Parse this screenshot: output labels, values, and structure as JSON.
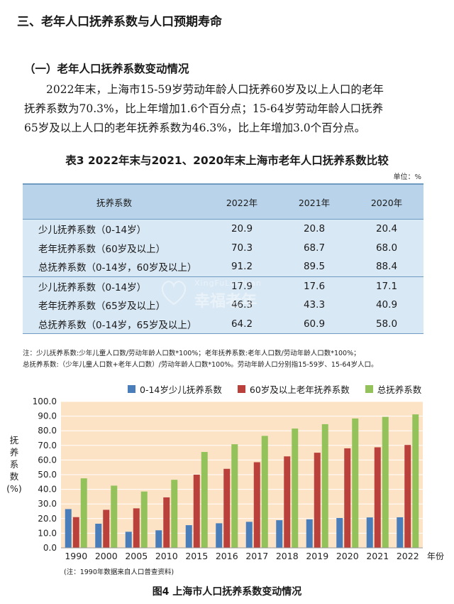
{
  "section_title": "三、老年人口抚养系数与人口预期寿命",
  "subsection_title": "（一）老年人口抚养系数变动情况",
  "paragraph": [
    "2022年末，上海市15-59岁劳动年龄人口抚养60岁及以上人口的老年",
    "抚养系数为70.3%，比上年增加1.6个百分点；15-64岁劳动年龄人口抚养",
    "65岁及以上人口的老年抚养系数为46.3%，比上年增加3.0个百分点。"
  ],
  "table": {
    "title": "表3  2022年末与2021、2020年末上海市老年人口抚养系数比较",
    "unit": "单位：%",
    "headers": [
      "抚养系数",
      "2022年",
      "2021年",
      "2020年"
    ],
    "rows": [
      [
        "少儿抚养系数（0-14岁）",
        "20.9",
        "20.8",
        "20.4"
      ],
      [
        "老年抚养系数（60岁及以上）",
        "70.3",
        "68.7",
        "68.0"
      ],
      [
        "总抚养系数（0-14岁，60岁及以上）",
        "91.2",
        "89.5",
        "88.4"
      ],
      [
        "少儿抚养系数（0-14岁）",
        "17.9",
        "17.6",
        "17.1"
      ],
      [
        "老年抚养系数（65岁及以上）",
        "46.3",
        "43.3",
        "40.9"
      ],
      [
        "总抚养系数（0-14岁，65岁及以上）",
        "64.2",
        "60.9",
        "58.0"
      ]
    ],
    "note_lines": [
      "注：少儿抚养系数:少年儿童人口数/劳动年龄人口数*100%；老年抚养系数:老年人口数/劳动年龄人口数*100%；",
      "总抚养系数:（少年儿童人口数+老年人口数）/劳动年龄人口数*100%。劳动年龄人口分别指15-59岁、15-64岁人口。"
    ]
  },
  "watermark": {
    "en": "XingFuLaoNian",
    "cn": "幸福老年"
  },
  "colors": {
    "table_head": "#b9d4ea",
    "table_body": "#d9e8f5",
    "chart_bg": "#fde3c6",
    "blue": "#4a7ebb",
    "red": "#b9403b",
    "green": "#93c25a"
  },
  "chart_data": {
    "type": "bar",
    "categories": [
      "1990",
      "2000",
      "2005",
      "2010",
      "2015",
      "2016",
      "2017",
      "2018",
      "2019",
      "2020",
      "2021",
      "2022"
    ],
    "x_unit": "年份",
    "ylabel": [
      "抚",
      "养",
      "系",
      "数",
      "(%)"
    ],
    "ylim": [
      0,
      100
    ],
    "yticks": [
      "0.0",
      "10.0",
      "20.0",
      "30.0",
      "40.0",
      "50.0",
      "60.0",
      "70.0",
      "80.0",
      "90.0",
      "100.0"
    ],
    "grid": true,
    "legend_position": "top",
    "series": [
      {
        "name": "0-14岁少儿抚养系数",
        "color": "#4a7ebb",
        "values": [
          26.5,
          16.5,
          11.0,
          12.0,
          15.5,
          16.8,
          17.8,
          18.9,
          19.5,
          20.4,
          20.8,
          20.9
        ]
      },
      {
        "name": "60岁及以上老年抚养系数",
        "color": "#b9403b",
        "values": [
          21.0,
          26.0,
          27.0,
          34.5,
          50.0,
          54.0,
          58.5,
          62.5,
          65.0,
          68.0,
          68.7,
          70.3
        ]
      },
      {
        "name": "总抚养系数",
        "color": "#93c25a",
        "values": [
          47.5,
          42.5,
          38.5,
          46.5,
          65.5,
          70.8,
          76.5,
          81.5,
          84.5,
          88.4,
          89.5,
          91.2
        ]
      }
    ],
    "note": "(注：1990年数据来自人口普查资料)",
    "title": "图4  上海市人口抚养系数变动情况"
  }
}
